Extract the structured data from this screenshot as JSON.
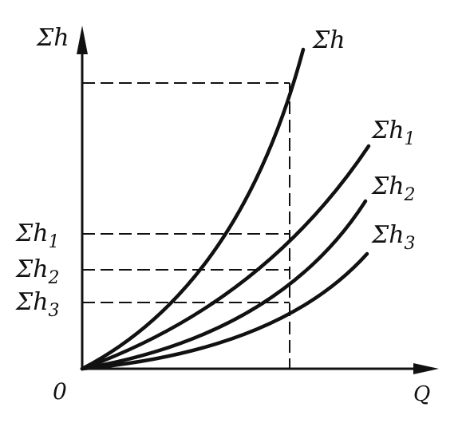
{
  "axes": {
    "y_label": "Σh",
    "x_label": "Q",
    "origin_label": "0"
  },
  "curves": [
    {
      "id": "sum",
      "sigma": "Σh",
      "subscript": ""
    },
    {
      "id": "h1",
      "sigma": "Σh",
      "subscript": "1"
    },
    {
      "id": "h2",
      "sigma": "Σh",
      "subscript": "2"
    },
    {
      "id": "h3",
      "sigma": "Σh",
      "subscript": "3"
    }
  ],
  "y_levels": [
    {
      "sigma": "Σh",
      "subscript": "1"
    },
    {
      "sigma": "Σh",
      "subscript": "2"
    },
    {
      "sigma": "Σh",
      "subscript": "3"
    }
  ],
  "colors": {
    "ink": "#111111",
    "background": "#ffffff"
  }
}
